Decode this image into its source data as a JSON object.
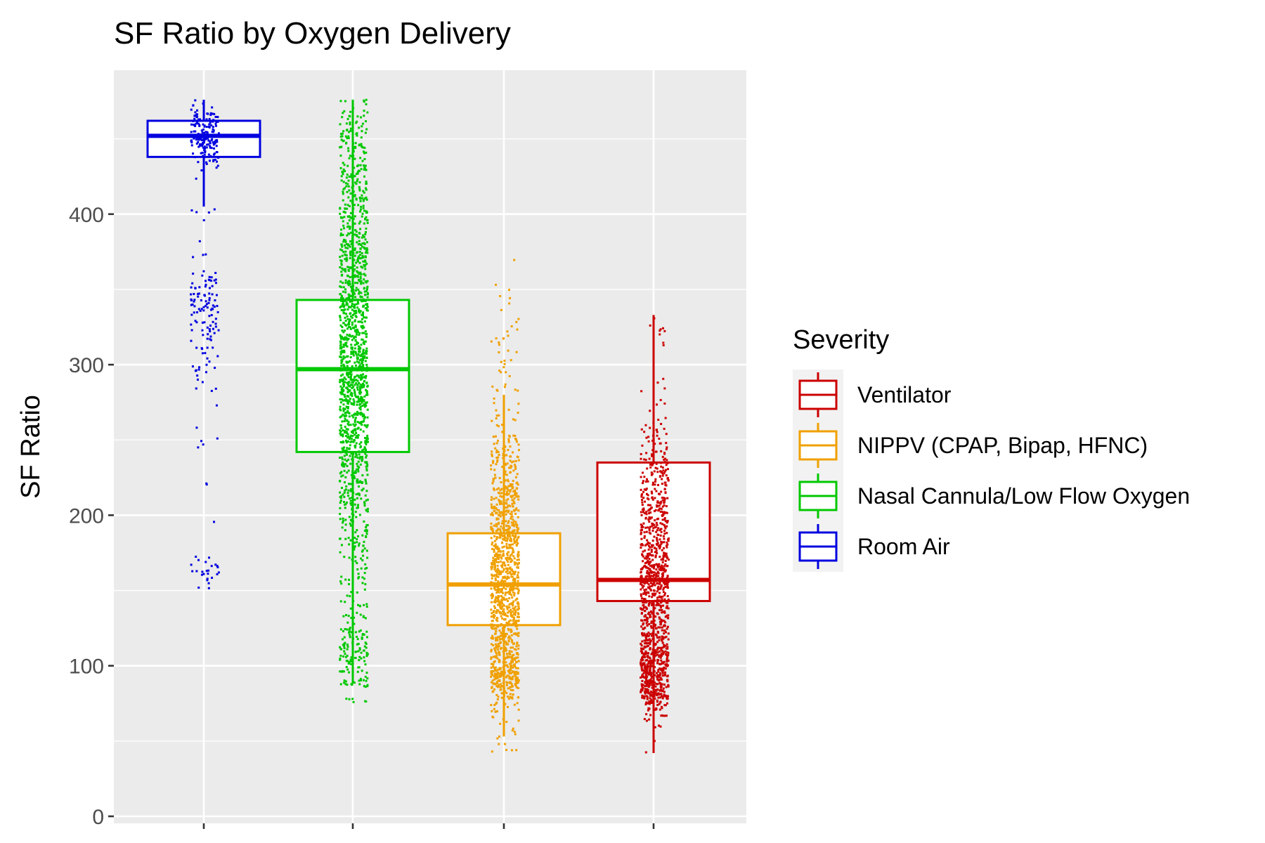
{
  "chart_data": {
    "type": "box",
    "title": "SF Ratio by Oxygen Delivery",
    "xlabel": "",
    "ylabel": "SF Ratio",
    "ylim": [
      0,
      485
    ],
    "yticks": [
      0,
      100,
      200,
      300,
      400
    ],
    "grid": true,
    "legend": {
      "title": "Severity",
      "position": "right",
      "entries": [
        "Ventilator",
        "NIPPV (CPAP, Bipap, HFNC)",
        "Nasal Cannula/Low Flow Oxygen",
        "Room Air"
      ]
    },
    "series": [
      {
        "name": "Room Air",
        "color": "#0000e0",
        "q1": 438,
        "median": 452,
        "q3": 462,
        "whisker_low": 405,
        "whisker_high": 476,
        "jitter_range": [
          97,
          476
        ]
      },
      {
        "name": "Nasal Cannula/Low Flow Oxygen",
        "color": "#00c800",
        "q1": 242,
        "median": 297,
        "q3": 343,
        "whisker_low": 88,
        "whisker_high": 476,
        "jitter_range": [
          72,
          476
        ]
      },
      {
        "name": "NIPPV (CPAP, Bipap, HFNC)",
        "color": "#f0a000",
        "q1": 127,
        "median": 154,
        "q3": 188,
        "whisker_low": 53,
        "whisker_high": 280,
        "jitter_range": [
          19,
          400
        ]
      },
      {
        "name": "Ventilator",
        "color": "#cc0000",
        "q1": 143,
        "median": 157,
        "q3": 235,
        "whisker_low": 42,
        "whisker_high": 333,
        "jitter_range": [
          42,
          333
        ]
      }
    ]
  }
}
